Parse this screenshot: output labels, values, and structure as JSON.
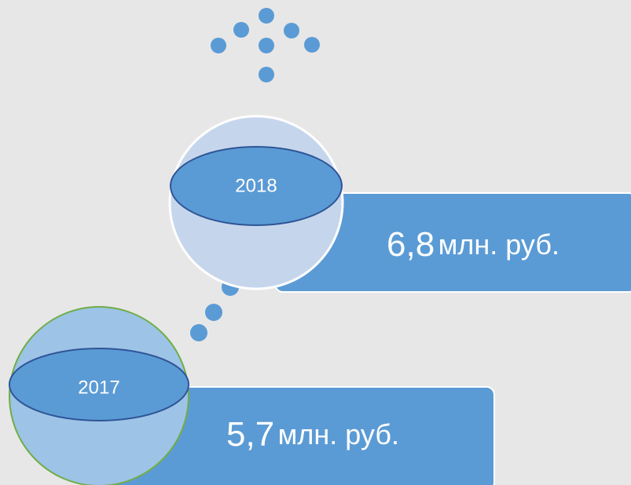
{
  "items": [
    {
      "year": "2018",
      "amount": "6,8",
      "unit": "млн. руб."
    },
    {
      "year": "2017",
      "amount": "5,7",
      "unit": "млн. руб."
    }
  ]
}
